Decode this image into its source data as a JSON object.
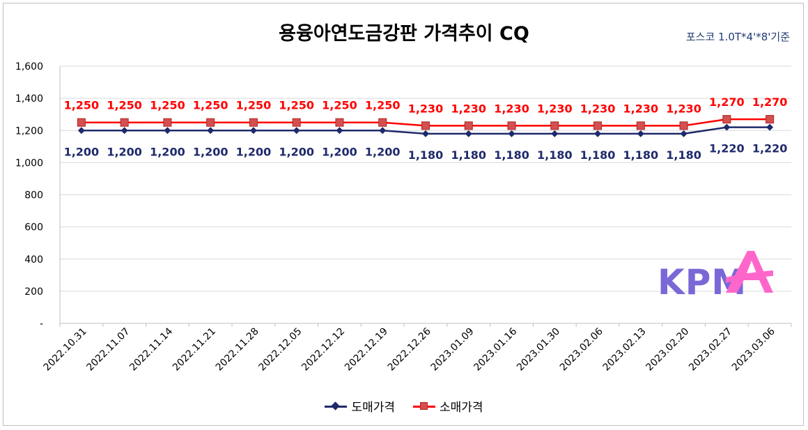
{
  "chart_data": {
    "type": "line",
    "title": "용융아연도금강판 가격추이 CQ",
    "subtitle": "포스코 1.0T*4'*8'기준",
    "categories": [
      "2022.10.31",
      "2022.11.07",
      "2022.11.14",
      "2022.11.21",
      "2022.11.28",
      "2022.12.05",
      "2022.12.12",
      "2022.12.19",
      "2022.12.26",
      "2023.01.09",
      "2023.01.16",
      "2023.01.30",
      "2023.02.06",
      "2023.02.13",
      "2023.02.20",
      "2023.02.27",
      "2023.03.06"
    ],
    "series": [
      {
        "name": "도매가격",
        "color": "#1f2a6b",
        "marker": "diamond",
        "values": [
          1200,
          1200,
          1200,
          1200,
          1200,
          1200,
          1200,
          1200,
          1180,
          1180,
          1180,
          1180,
          1180,
          1180,
          1180,
          1220,
          1220
        ]
      },
      {
        "name": "소매가격",
        "color": "#ff0000",
        "marker_color": "#d35050",
        "marker": "square",
        "values": [
          1250,
          1250,
          1250,
          1250,
          1250,
          1250,
          1250,
          1250,
          1230,
          1230,
          1230,
          1230,
          1230,
          1230,
          1230,
          1270,
          1270
        ]
      }
    ],
    "ylim": [
      0,
      1600
    ],
    "yticks": [
      "-",
      "200",
      "400",
      "600",
      "800",
      "1,000",
      "1,200",
      "1,400",
      "1,600"
    ],
    "grid": true,
    "legend_position": "bottom",
    "xlabel": "",
    "ylabel": ""
  },
  "logo": {
    "text": "KPMA"
  }
}
